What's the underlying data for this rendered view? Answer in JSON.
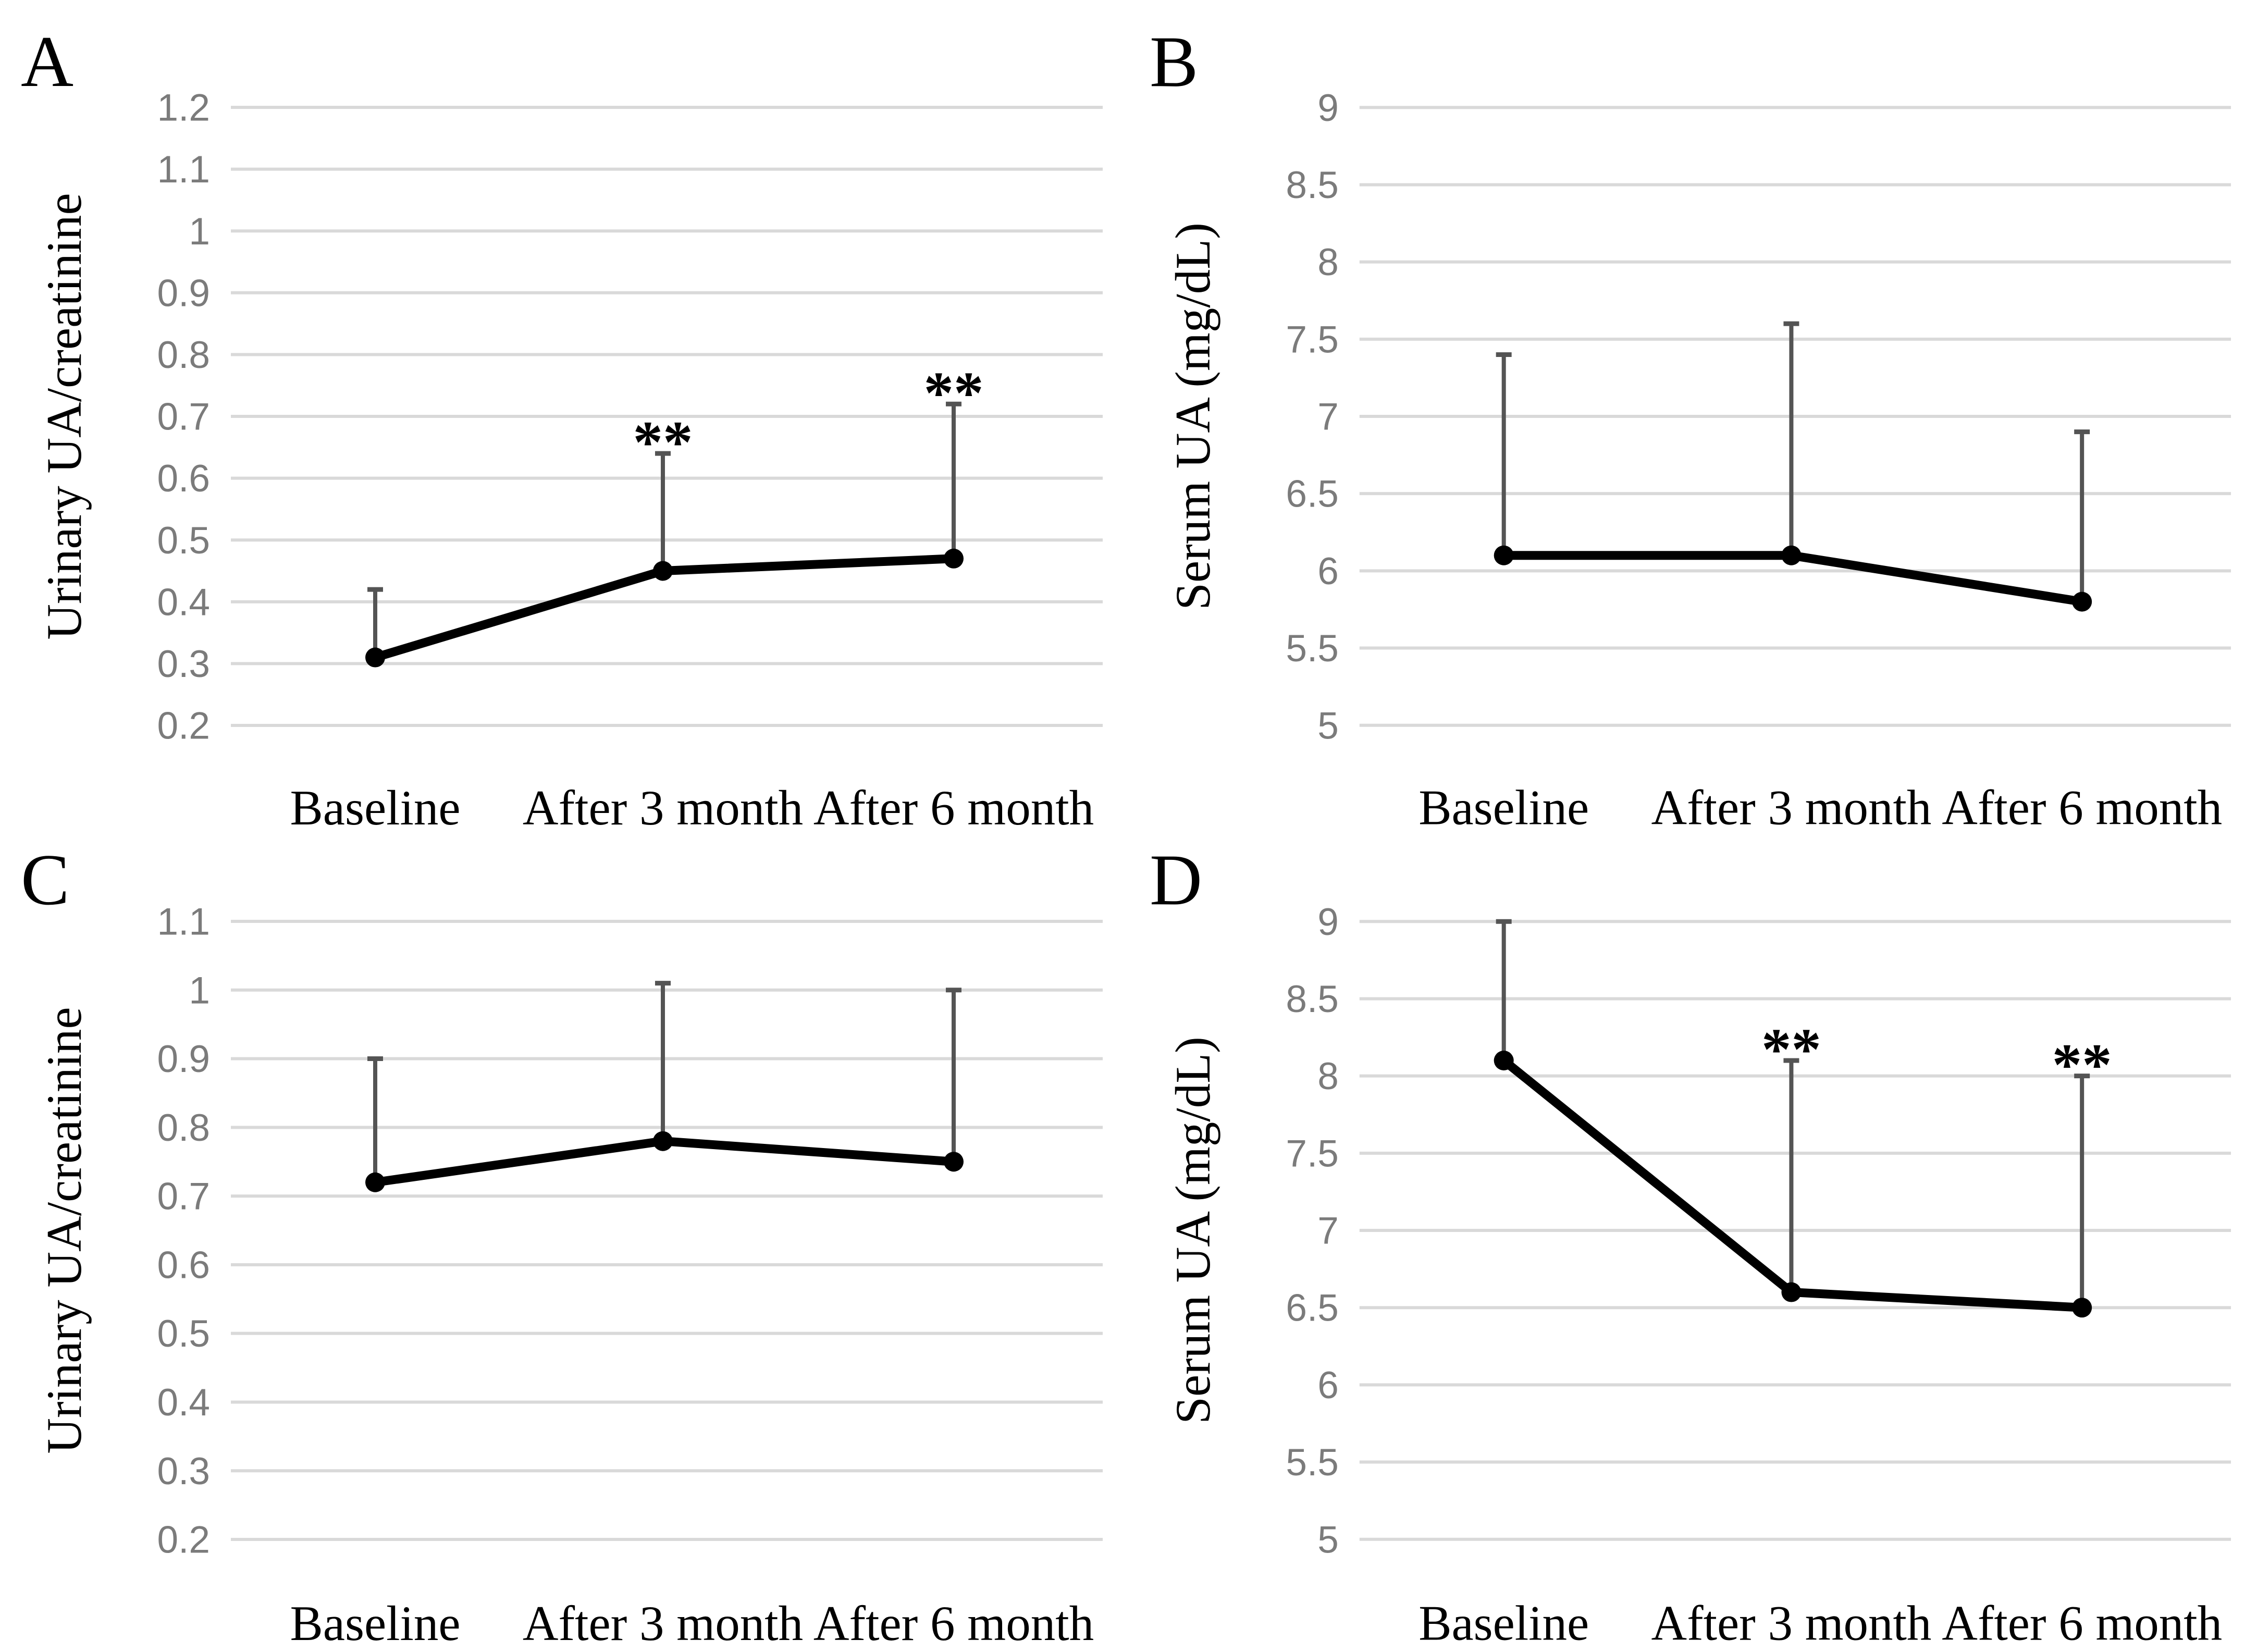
{
  "figure": {
    "background": "#ffffff",
    "colors": {
      "series": "#000000",
      "data_point": "#000000",
      "error_bar": "#545454",
      "gridline": "#d9d9d9",
      "tick_label": "#7b7b7b",
      "label_text": "#000000"
    }
  },
  "categories": [
    "Baseline",
    "After 3 month",
    "After 6 month"
  ],
  "chart_data": [
    {
      "type": "line",
      "panel_letter": "A",
      "title": "",
      "xlabel": "",
      "ylabel": "Urinary UA/creatinine",
      "categories": [
        "Baseline",
        "After 3 month",
        "After 6 month"
      ],
      "series": [
        {
          "name": "Urinary UA/creatinine",
          "values": [
            0.31,
            0.45,
            0.47
          ]
        }
      ],
      "error_upper": [
        0.42,
        0.64,
        0.72
      ],
      "significance": [
        "",
        "**",
        "**"
      ],
      "ylim": [
        0.2,
        1.2
      ],
      "ytick_step": 0.1,
      "ytick_labels": [
        "1.2",
        "1.1",
        "1",
        "0.9",
        "0.8",
        "0.7",
        "0.6",
        "0.5",
        "0.4",
        "0.3",
        "0.2"
      ],
      "grid": true,
      "legend": false
    },
    {
      "type": "line",
      "panel_letter": "B",
      "title": "",
      "xlabel": "",
      "ylabel": "Serum UA (mg/dL)",
      "categories": [
        "Baseline",
        "After 3 month",
        "After 6 month"
      ],
      "series": [
        {
          "name": "Serum UA (mg/dL)",
          "values": [
            6.1,
            6.1,
            5.8
          ]
        }
      ],
      "error_upper": [
        7.4,
        7.6,
        6.9
      ],
      "significance": [
        "",
        "",
        ""
      ],
      "ylim": [
        5,
        9
      ],
      "ytick_step": 0.5,
      "ytick_labels": [
        "9",
        "8.5",
        "8",
        "7.5",
        "7",
        "6.5",
        "6",
        "5.5",
        "5"
      ],
      "grid": true,
      "legend": false
    },
    {
      "type": "line",
      "panel_letter": "C",
      "title": "",
      "xlabel": "",
      "ylabel": "Urinary UA/creatinine",
      "categories": [
        "Baseline",
        "After 3 month",
        "After 6 month"
      ],
      "series": [
        {
          "name": "Urinary UA/creatinine",
          "values": [
            0.72,
            0.78,
            0.75
          ]
        }
      ],
      "error_upper": [
        0.9,
        1.01,
        1.0
      ],
      "significance": [
        "",
        "",
        ""
      ],
      "ylim": [
        0.2,
        1.1
      ],
      "ytick_step": 0.1,
      "ytick_labels": [
        "1.1",
        "1",
        "0.9",
        "0.8",
        "0.7",
        "0.6",
        "0.5",
        "0.4",
        "0.3",
        "0.2"
      ],
      "grid": true,
      "legend": false
    },
    {
      "type": "line",
      "panel_letter": "D",
      "title": "",
      "xlabel": "",
      "ylabel": "Serum UA (mg/dL)",
      "categories": [
        "Baseline",
        "After 3 month",
        "After 6 month"
      ],
      "series": [
        {
          "name": "Serum UA (mg/dL)",
          "values": [
            8.1,
            6.6,
            6.5
          ]
        }
      ],
      "error_upper": [
        9.0,
        8.1,
        8.0
      ],
      "significance": [
        "",
        "**",
        "**"
      ],
      "ylim": [
        5,
        9
      ],
      "ytick_step": 0.5,
      "ytick_labels": [
        "9",
        "8.5",
        "8",
        "7.5",
        "7",
        "6.5",
        "6",
        "5.5",
        "5"
      ],
      "grid": true,
      "legend": false
    }
  ]
}
